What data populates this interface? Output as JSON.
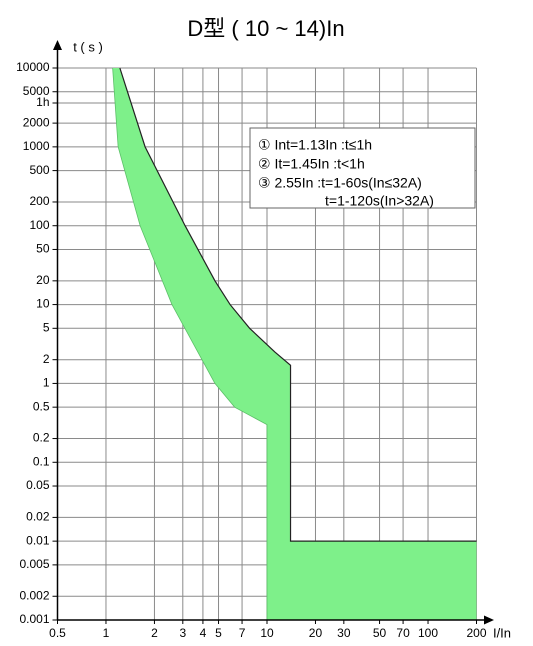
{
  "chart_data": {
    "type": "band",
    "title": "D型 ( 10 ~ 14)In",
    "ylabel": "t ( s )",
    "xlabel": "I/In",
    "log_x": true,
    "log_y": true,
    "grid": true,
    "color": "#7ef08a",
    "xlim": [
      0.5,
      200
    ],
    "xticks": [
      0.5,
      1,
      2,
      3,
      4,
      5,
      7,
      10,
      20,
      30,
      50,
      70,
      100,
      200
    ],
    "ylim": [
      0.001,
      10000
    ],
    "yticks": [
      0.001,
      0.002,
      0.005,
      0.01,
      0.02,
      0.05,
      0.1,
      0.2,
      0.5,
      1,
      2,
      5,
      10,
      20,
      50,
      100,
      200,
      500,
      1000,
      2000,
      {
        "value": 3600,
        "label": "1h"
      },
      5000,
      10000
    ],
    "series": [
      {
        "x": [
          1.22,
          1.75,
          3.1,
          4.75,
          5.9,
          7.8,
          11.2,
          14,
          14,
          200
        ],
        "values": [
          10000,
          1000,
          100,
          20,
          10,
          5,
          2.5,
          1.7,
          0.01,
          0.01
        ]
      },
      {
        "x": [
          1.1,
          1.19,
          1.63,
          2.57,
          4.75,
          6.3,
          10,
          10,
          200
        ],
        "values": [
          10000,
          1000,
          100,
          10,
          1,
          0.5,
          0.3,
          0.001,
          0.001
        ]
      }
    ],
    "annotations": [
      "①  Int=1.13In  :t≤1h",
      "②  It=1.45In  :t<1h",
      "③  2.55In  :t=1-60s(In≤32A)",
      "t=1-120s(In>32A)"
    ]
  }
}
